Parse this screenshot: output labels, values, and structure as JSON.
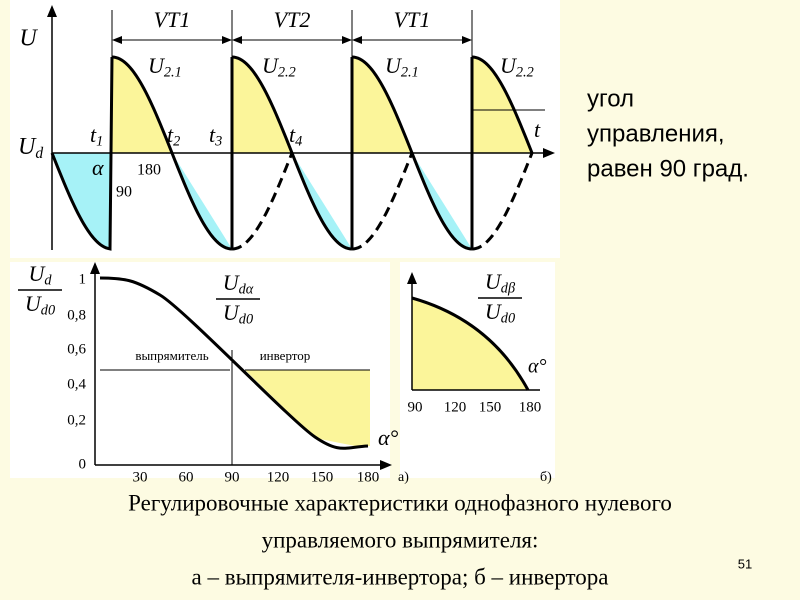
{
  "waveform": {
    "axis_u": "U",
    "axis_ud": {
      "main": "U",
      "sub": "d"
    },
    "axis_t": "t",
    "times": [
      {
        "main": "t",
        "sub": "1"
      },
      {
        "main": "t",
        "sub": "2"
      },
      {
        "main": "t",
        "sub": "3"
      },
      {
        "main": "t",
        "sub": "4"
      }
    ],
    "alpha": "α",
    "angle_180": "180",
    "angle_90": "90",
    "valves": [
      "VT1",
      "VT2",
      "VT1"
    ],
    "voltages": [
      {
        "main": "U",
        "sub": "2.1"
      },
      {
        "main": "U",
        "sub": "2.2"
      },
      {
        "main": "U",
        "sub": "2.1"
      },
      {
        "main": "U",
        "sub": "2.2"
      }
    ]
  },
  "note": [
    "угол",
    "управления,",
    "равен 90 град."
  ],
  "chart_a": {
    "y_label": {
      "num": {
        "main": "U",
        "sub": "d"
      },
      "den": {
        "main": "U",
        "sub": "d0"
      }
    },
    "curve_label": {
      "num": {
        "main": "U",
        "sub": "dα"
      },
      "den": {
        "main": "U",
        "sub": "d0"
      }
    },
    "yticks": [
      "0",
      "0,2",
      "0,4",
      "0,6",
      "0,8",
      "1"
    ],
    "xticks": [
      "30",
      "60",
      "90",
      "120",
      "150",
      "180"
    ],
    "rectifier": "выпрямитель",
    "inverter": "инвертор",
    "x_label": "α°",
    "panel": "а)"
  },
  "chart_b": {
    "curve_label": {
      "num": {
        "main": "U",
        "sub": "dβ"
      },
      "den": {
        "main": "U",
        "sub": "d0"
      }
    },
    "xticks": [
      "90",
      "120",
      "150",
      "180"
    ],
    "x_label": "α°",
    "panel": "б)"
  },
  "caption": [
    "Регулировочные характеристики однофазного нулевого",
    "управляемого выпрямителя:",
    "а – выпрямителя-инвертора; б – инвертора"
  ],
  "page_number": "51"
}
